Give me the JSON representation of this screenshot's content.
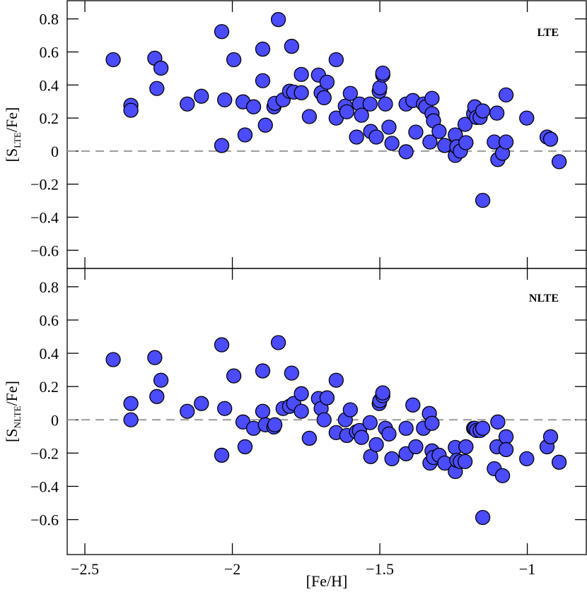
{
  "chart_data": [
    {
      "type": "scatter",
      "annotation": "LTE",
      "color": "#4b4bff",
      "hline": 0,
      "ylabel": {
        "pre": "[S",
        "sub": "LTE",
        "post": "/Fe]"
      },
      "xlim": [
        -2.56,
        -0.8
      ],
      "ylim": [
        -0.71,
        0.91
      ],
      "xticks": [
        -2.5,
        -2,
        -1.5,
        -1
      ],
      "yticks": [
        {
          "value": -0.6,
          "label": "−0.6"
        },
        {
          "value": -0.4,
          "label": "−0.4"
        },
        {
          "value": -0.2,
          "label": "−0.2"
        },
        0,
        0.2,
        0.4,
        0.6,
        0.8
      ],
      "x": [
        -2.404,
        -2.344,
        -2.344,
        -2.263,
        -2.256,
        -2.242,
        -2.153,
        -2.105,
        -2.036,
        -2.036,
        -2.026,
        -1.995,
        -1.964,
        -1.957,
        -1.928,
        -1.897,
        -1.897,
        -1.888,
        -1.859,
        -1.856,
        -1.844,
        -1.828,
        -1.806,
        -1.799,
        -1.792,
        -1.766,
        -1.766,
        -1.739,
        -1.708,
        -1.699,
        -1.689,
        -1.679,
        -1.648,
        -1.648,
        -1.617,
        -1.612,
        -1.6,
        -1.579,
        -1.569,
        -1.562,
        -1.533,
        -1.531,
        -1.512,
        -1.502,
        -1.5,
        -1.49,
        -1.49,
        -1.481,
        -1.469,
        -1.459,
        -1.411,
        -1.411,
        -1.388,
        -1.378,
        -1.352,
        -1.344,
        -1.33,
        -1.323,
        -1.323,
        -1.318,
        -1.299,
        -1.28,
        -1.244,
        -1.244,
        -1.239,
        -1.227,
        -1.208,
        -1.211,
        -1.182,
        -1.178,
        -1.172,
        -1.16,
        -1.151,
        -1.151,
        -1.112,
        -1.103,
        -1.1,
        -1.084,
        -1.072,
        -1.072,
        -1.002,
        -0.933,
        -0.921,
        -0.892
      ],
      "values": [
        0.553,
        0.277,
        0.247,
        0.562,
        0.379,
        0.502,
        0.285,
        0.332,
        0.723,
        0.034,
        0.31,
        0.553,
        0.298,
        0.098,
        0.268,
        0.617,
        0.426,
        0.157,
        0.268,
        0.289,
        0.796,
        0.31,
        0.362,
        0.634,
        0.357,
        0.464,
        0.353,
        0.209,
        0.46,
        0.353,
        0.323,
        0.417,
        0.553,
        0.2,
        0.272,
        0.238,
        0.349,
        0.085,
        0.285,
        0.217,
        0.285,
        0.119,
        0.085,
        0.362,
        0.383,
        0.46,
        0.472,
        0.285,
        0.145,
        0.047,
        -0.004,
        0.285,
        0.306,
        0.115,
        0.285,
        0.268,
        0.055,
        0.319,
        0.226,
        0.183,
        0.119,
        0.034,
        0.098,
        -0.026,
        0.026,
        0.0,
        0.051,
        0.162,
        0.226,
        0.268,
        0.204,
        0.204,
        0.243,
        -0.298,
        0.055,
        0.23,
        -0.051,
        -0.013,
        0.34,
        0.055,
        0.2,
        0.085,
        0.072,
        -0.064
      ]
    },
    {
      "type": "scatter",
      "annotation": "NLTE",
      "color": "#4b4bff",
      "hline": 0,
      "ylabel": {
        "pre": "[S",
        "sub": "NLTE",
        "post": "/Fe]"
      },
      "xlabel": "[Fe/H]",
      "xlim": [
        -2.56,
        -0.8
      ],
      "ylim": [
        -0.81,
        0.91
      ],
      "xticks": [
        {
          "value": -2.5,
          "label": "−2.5"
        },
        {
          "value": -2,
          "label": "−2"
        },
        {
          "value": -1.5,
          "label": "−1.5"
        },
        {
          "value": -1,
          "label": "−1"
        }
      ],
      "yticks": [
        {
          "value": -0.6,
          "label": "−0.6"
        },
        {
          "value": -0.4,
          "label": "−0.4"
        },
        {
          "value": -0.2,
          "label": "−0.2"
        },
        0,
        0.2,
        0.4,
        0.6,
        0.8
      ],
      "x": [
        -2.404,
        -2.344,
        -2.344,
        -2.263,
        -2.256,
        -2.242,
        -2.153,
        -2.105,
        -2.036,
        -2.036,
        -2.026,
        -1.995,
        -1.964,
        -1.957,
        -1.928,
        -1.897,
        -1.897,
        -1.888,
        -1.859,
        -1.856,
        -1.844,
        -1.828,
        -1.806,
        -1.799,
        -1.792,
        -1.766,
        -1.766,
        -1.739,
        -1.708,
        -1.699,
        -1.689,
        -1.679,
        -1.648,
        -1.648,
        -1.617,
        -1.612,
        -1.6,
        -1.579,
        -1.569,
        -1.562,
        -1.533,
        -1.531,
        -1.512,
        -1.502,
        -1.5,
        -1.49,
        -1.49,
        -1.481,
        -1.469,
        -1.459,
        -1.411,
        -1.411,
        -1.388,
        -1.378,
        -1.352,
        -1.332,
        -1.33,
        -1.323,
        -1.323,
        -1.318,
        -1.299,
        -1.28,
        -1.244,
        -1.244,
        -1.239,
        -1.227,
        -1.208,
        -1.211,
        -1.182,
        -1.178,
        -1.172,
        -1.16,
        -1.151,
        -1.151,
        -1.112,
        -1.103,
        -1.1,
        -1.084,
        -1.072,
        -1.072,
        -1.002,
        -0.933,
        -0.921,
        -0.892
      ],
      "values": [
        0.362,
        0.098,
        0.0,
        0.374,
        0.14,
        0.238,
        0.051,
        0.098,
        0.451,
        -0.213,
        0.068,
        0.264,
        -0.013,
        -0.162,
        -0.051,
        0.294,
        0.051,
        -0.03,
        -0.043,
        -0.03,
        0.464,
        0.068,
        0.081,
        0.281,
        0.098,
        0.157,
        0.051,
        -0.111,
        0.128,
        0.068,
        0.0,
        0.132,
        0.238,
        -0.077,
        0.0,
        -0.094,
        0.06,
        -0.072,
        -0.064,
        -0.106,
        -0.017,
        -0.221,
        -0.149,
        0.098,
        0.115,
        0.145,
        0.162,
        -0.051,
        -0.085,
        -0.234,
        -0.204,
        -0.051,
        0.089,
        -0.162,
        -0.051,
        0.038,
        -0.26,
        -0.021,
        -0.187,
        -0.226,
        -0.213,
        -0.26,
        -0.166,
        -0.311,
        -0.243,
        -0.251,
        -0.162,
        -0.251,
        -0.051,
        -0.051,
        -0.064,
        -0.064,
        -0.051,
        -0.587,
        -0.294,
        -0.162,
        -0.013,
        -0.336,
        -0.102,
        -0.179,
        -0.234,
        -0.162,
        -0.102,
        -0.255
      ]
    }
  ]
}
